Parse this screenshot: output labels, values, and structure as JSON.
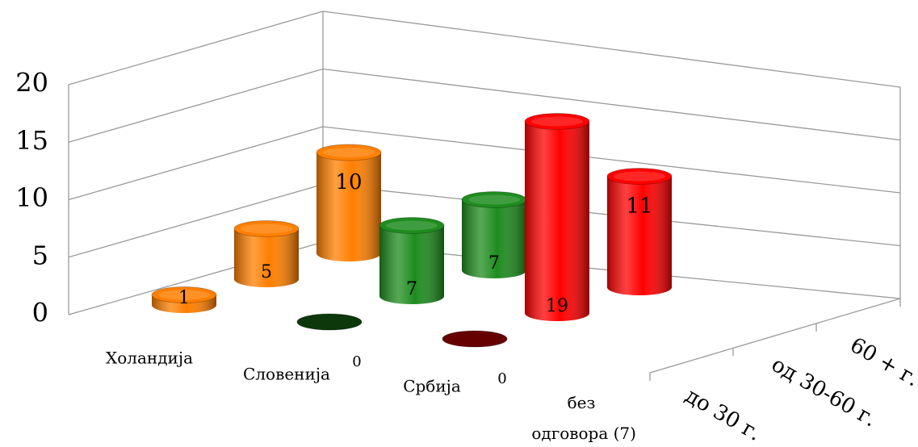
{
  "chart_data": {
    "type": "bar3d",
    "categories": [
      "Холандија",
      "Словенија",
      "Србија",
      "без одговора (7)"
    ],
    "category_colors": [
      "#ff7f00",
      "#1e8c1e",
      "#ff0000",
      "#888888"
    ],
    "series": [
      {
        "name": "до 30 г.",
        "values": [
          1,
          0,
          0,
          null
        ]
      },
      {
        "name": "од 30-60 г.",
        "values": [
          5,
          7,
          19,
          null
        ]
      },
      {
        "name": "60 + г.",
        "values": [
          10,
          7,
          11,
          null
        ]
      }
    ],
    "ylim": [
      0,
      20
    ],
    "yticks": [
      0,
      5,
      10,
      15,
      20
    ],
    "grid": true
  }
}
